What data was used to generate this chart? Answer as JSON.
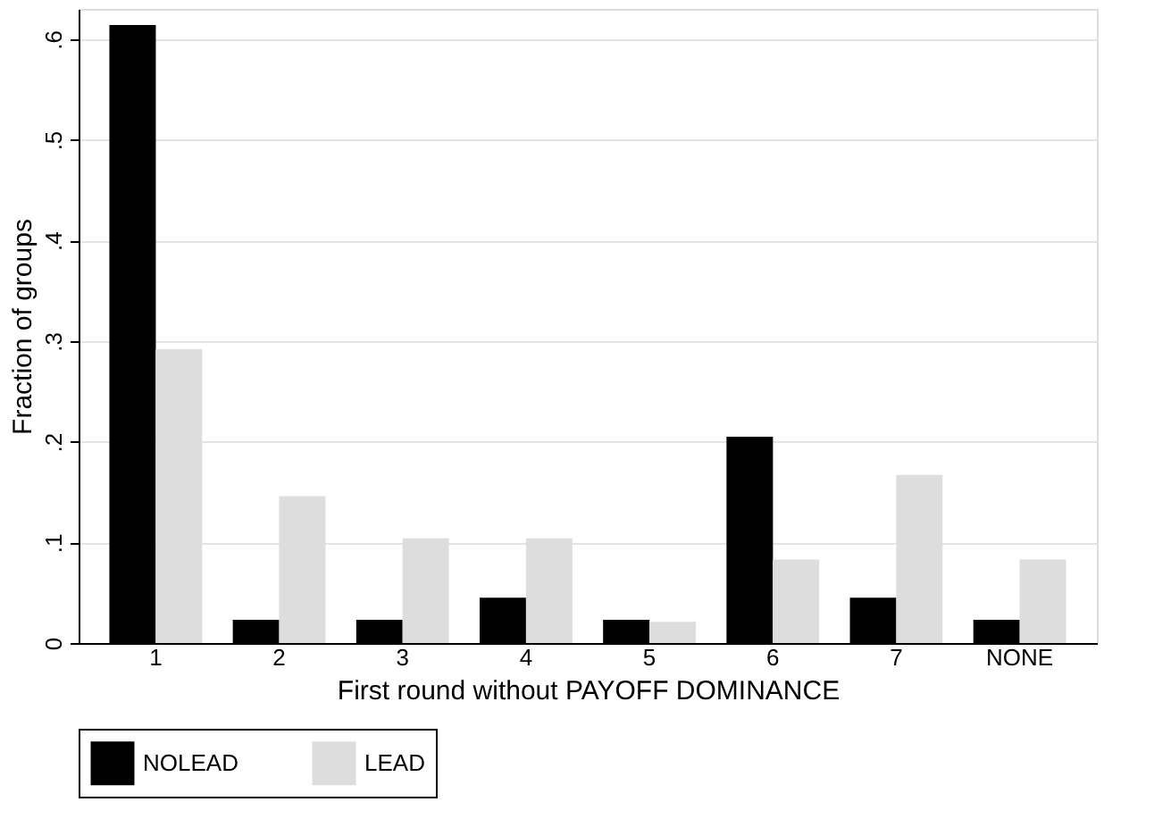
{
  "chart_data": {
    "type": "bar",
    "xlabel": "First round without PAYOFF DOMINANCE",
    "ylabel": "Fraction of groups",
    "categories": [
      "1",
      "2",
      "3",
      "4",
      "5",
      "6",
      "7",
      "NONE"
    ],
    "series": [
      {
        "name": "NOLEAD",
        "color": "#000000",
        "values": [
          0.614,
          0.023,
          0.023,
          0.045,
          0.023,
          0.205,
          0.045,
          0.023
        ]
      },
      {
        "name": "LEAD",
        "color": "#dddddd",
        "values": [
          0.292,
          0.146,
          0.104,
          0.104,
          0.021,
          0.083,
          0.167,
          0.083
        ]
      }
    ],
    "ylim": [
      0,
      0.63
    ],
    "yticks": [
      0,
      {
        "value": 0.1,
        "label": ".1"
      },
      {
        "value": 0.2,
        "label": ".2"
      },
      {
        "value": 0.3,
        "label": ".3"
      },
      {
        "value": 0.4,
        "label": ".4"
      },
      {
        "value": 0.5,
        "label": ".5"
      },
      {
        "value": 0.6,
        "label": ".6"
      }
    ],
    "grid": "y",
    "legend": "bottom"
  }
}
